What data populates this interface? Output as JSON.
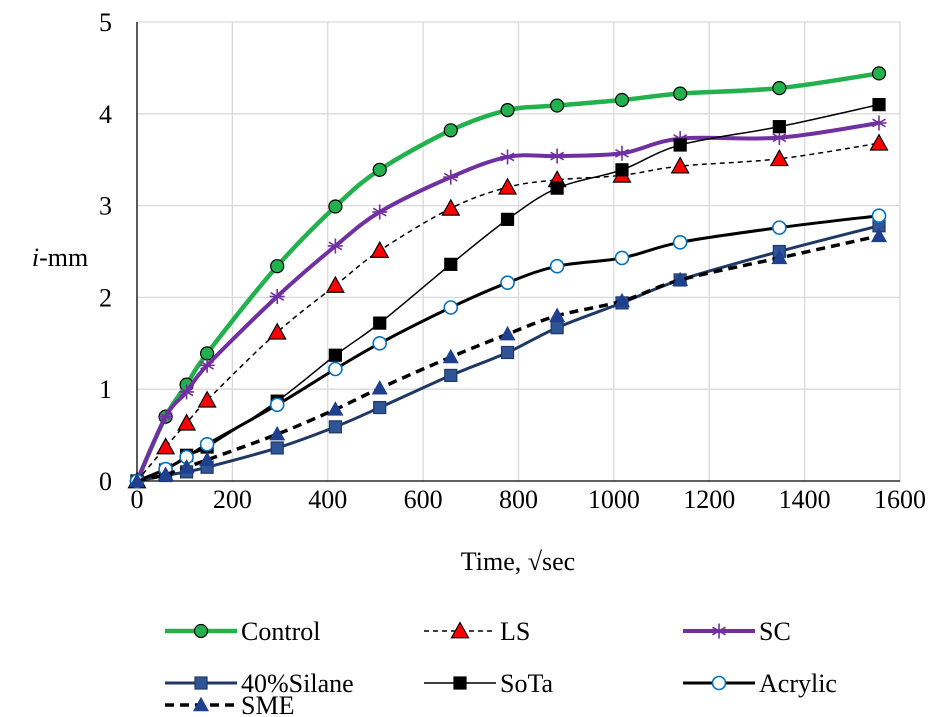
{
  "chart_data": {
    "type": "line",
    "xlabel": "Time, √sec",
    "ylabel_italic": "i",
    "ylabel_rest": "-mm",
    "xlim": [
      0,
      1600
    ],
    "ylim": [
      0,
      5
    ],
    "xticks": [
      0,
      200,
      400,
      600,
      800,
      1000,
      1200,
      1400,
      1600
    ],
    "yticks": [
      0,
      1,
      2,
      3,
      4,
      5
    ],
    "grid": true,
    "legend_position": "bottom",
    "x": [
      0,
      60,
      104,
      147,
      294,
      416,
      509,
      658,
      777,
      881,
      1017,
      1139,
      1347,
      1556
    ],
    "series": [
      {
        "name": "Control",
        "color": "#22b14c",
        "line": "solid",
        "width": 4.5,
        "marker": "circle",
        "marker_fill": "#22b14c",
        "marker_stroke": "#000000",
        "values": [
          0,
          0.7,
          1.05,
          1.39,
          2.34,
          2.99,
          3.39,
          3.82,
          4.04,
          4.09,
          4.15,
          4.22,
          4.28,
          4.44
        ]
      },
      {
        "name": "LS",
        "color": "#000000",
        "line": "dashed",
        "width": 1.5,
        "marker": "triangle",
        "marker_fill": "#ff0000",
        "marker_stroke": "#000000",
        "values": [
          0,
          0.37,
          0.63,
          0.88,
          1.62,
          2.13,
          2.51,
          2.97,
          3.2,
          3.28,
          3.33,
          3.43,
          3.51,
          3.68
        ]
      },
      {
        "name": "SC",
        "color": "#7030a0",
        "line": "solid",
        "width": 4.0,
        "marker": "asterisk",
        "marker_fill": "none",
        "marker_stroke": "#7030a0",
        "values": [
          0,
          0.7,
          0.97,
          1.26,
          2.01,
          2.56,
          2.93,
          3.31,
          3.53,
          3.54,
          3.57,
          3.73,
          3.74,
          3.9
        ]
      },
      {
        "name": "40%Silane",
        "color": "#203864",
        "line": "solid",
        "width": 3.0,
        "marker": "square",
        "marker_fill": "#2f5597",
        "marker_stroke": "#203864",
        "values": [
          0,
          0.06,
          0.1,
          0.15,
          0.36,
          0.59,
          0.8,
          1.15,
          1.4,
          1.67,
          1.94,
          2.19,
          2.5,
          2.78
        ]
      },
      {
        "name": "SoTa",
        "color": "#000000",
        "line": "solid",
        "width": 1.5,
        "marker": "square",
        "marker_fill": "#000000",
        "marker_stroke": "#000000",
        "values": [
          0,
          0.12,
          0.28,
          0.37,
          0.87,
          1.37,
          1.72,
          2.36,
          2.85,
          3.19,
          3.39,
          3.66,
          3.86,
          4.1
        ]
      },
      {
        "name": "Acrylic",
        "color": "#000000",
        "line": "solid",
        "width": 3.0,
        "marker": "circle",
        "marker_fill": "#ffffff",
        "marker_stroke": "#0070c0",
        "values": [
          0,
          0.13,
          0.26,
          0.4,
          0.83,
          1.22,
          1.5,
          1.89,
          2.16,
          2.34,
          2.43,
          2.6,
          2.76,
          2.89
        ]
      },
      {
        "name": "SME",
        "color": "#000000",
        "line": "dashed",
        "width": 3.5,
        "marker": "triangle",
        "marker_fill": "#1f3f8f",
        "marker_stroke": "#1f3f8f",
        "values": [
          0,
          0.07,
          0.15,
          0.23,
          0.51,
          0.78,
          1.01,
          1.35,
          1.6,
          1.8,
          1.96,
          2.19,
          2.43,
          2.67
        ]
      }
    ]
  }
}
